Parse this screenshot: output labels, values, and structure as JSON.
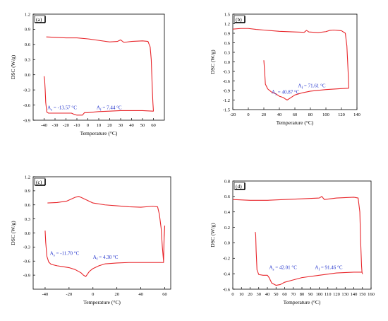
{
  "chart_data": [
    {
      "type": "line",
      "panel": "(a)",
      "xlabel": "Temperature (°C)",
      "ylabel": "DSC (W/g)",
      "xlim": [
        -50,
        70
      ],
      "ylim": [
        -0.9,
        1.2
      ],
      "xticks": [
        -40,
        -30,
        -20,
        -10,
        0,
        10,
        20,
        30,
        40,
        50,
        60
      ],
      "yticks": [
        -0.9,
        -0.6,
        -0.3,
        0.0,
        0.3,
        0.6,
        0.9,
        1.2
      ],
      "xtick_labels": [
        "-40",
        "-30",
        "-20",
        "-10",
        "0",
        "10",
        "20",
        "30",
        "40",
        "50",
        "60"
      ],
      "ytick_labels": [
        "-0.9",
        "-0.6",
        "-0.3",
        "0.0",
        "0.3",
        "0.6",
        "0.9",
        "1.2"
      ],
      "series": [
        {
          "color": "#e8262b",
          "x": [
            -38,
            -30,
            -20,
            -10,
            0,
            10,
            20,
            27,
            30,
            33,
            40,
            50,
            55,
            57,
            58,
            58.5,
            59,
            59.5,
            60,
            59.5,
            50,
            40,
            30,
            20,
            10,
            5,
            0,
            -3,
            -5,
            -10,
            -13,
            -15,
            -20,
            -30,
            -36,
            -37.5,
            -38.5,
            -39,
            -39.5,
            -40
          ],
          "y": [
            0.75,
            0.74,
            0.73,
            0.73,
            0.71,
            0.68,
            0.65,
            0.66,
            0.69,
            0.64,
            0.66,
            0.67,
            0.66,
            0.55,
            0.3,
            0.0,
            -0.3,
            -0.55,
            -0.72,
            -0.72,
            -0.71,
            -0.71,
            -0.71,
            -0.72,
            -0.73,
            -0.74,
            -0.75,
            -0.75,
            -0.8,
            -0.8,
            -0.78,
            -0.76,
            -0.76,
            -0.76,
            -0.76,
            -0.74,
            -0.55,
            -0.3,
            -0.1,
            -0.03
          ]
        }
      ],
      "annotations": [
        {
          "main": "A",
          "sub": "s",
          "text": " = -13.57 °C",
          "x": -37,
          "y": -0.68
        },
        {
          "main": "A",
          "sub": "f",
          "text": " = 7.44 °C",
          "x": 8,
          "y": -0.68
        }
      ]
    },
    {
      "type": "line",
      "panel": "(b)",
      "xlabel": "Temperature (°C)",
      "ylabel": "DSC (W/g)",
      "xlim": [
        -20,
        140
      ],
      "ylim": [
        -1.5,
        1.5
      ],
      "xticks": [
        -20,
        0,
        20,
        40,
        60,
        80,
        100,
        120,
        140
      ],
      "yticks": [
        -1.5,
        -1.2,
        -0.9,
        -0.6,
        -0.3,
        0.0,
        0.3,
        0.6,
        0.9,
        1.2,
        1.5
      ],
      "xtick_labels": [
        "-20",
        "0",
        "20",
        "40",
        "60",
        "80",
        "100",
        "120",
        "140"
      ],
      "ytick_labels": [
        "-1.5",
        "-1.2",
        "-0.9",
        "-0.6",
        "-0.3",
        "0.0",
        "0.3",
        "0.6",
        "0.9",
        "1.2",
        "1.5"
      ],
      "series": [
        {
          "color": "#e8262b",
          "x": [
            -20,
            -10,
            0,
            10,
            20,
            40,
            60,
            72,
            75,
            78,
            90,
            100,
            105,
            110,
            115,
            120,
            125,
            127,
            128,
            129,
            129.5,
            129,
            120,
            100,
            80,
            70,
            60,
            55,
            50,
            48,
            45,
            40,
            35,
            30,
            25,
            22,
            21,
            20
          ],
          "y": [
            1.03,
            1.05,
            1.05,
            1.02,
            1.0,
            0.96,
            0.94,
            0.93,
            0.99,
            0.94,
            0.92,
            0.95,
            0.99,
            1.0,
            0.99,
            0.98,
            0.9,
            0.5,
            0.0,
            -0.5,
            -0.82,
            -0.83,
            -0.84,
            -0.87,
            -0.92,
            -0.97,
            -1.04,
            -1.12,
            -1.2,
            -1.17,
            -1.12,
            -1.08,
            -1.0,
            -0.95,
            -0.85,
            -0.7,
            -0.3,
            0.05
          ]
        }
      ],
      "annotations": [
        {
          "main": "A",
          "sub": "s",
          "text": " = 40.87 °C",
          "x": 30,
          "y": -1.0
        },
        {
          "main": "A",
          "sub": "f",
          "text": " = 71.61 °C",
          "x": 64,
          "y": -0.8
        }
      ]
    },
    {
      "type": "line",
      "panel": "(c)",
      "xlabel": "Temperature (°C)",
      "ylabel": "DSC (W/g)",
      "xlim": [
        -50,
        65
      ],
      "ylim": [
        -1.2,
        1.2
      ],
      "xticks": [
        -40,
        -20,
        0,
        20,
        40,
        60
      ],
      "yticks": [
        -0.9,
        -0.6,
        -0.3,
        0.0,
        0.3,
        0.6,
        0.9,
        1.2
      ],
      "xtick_labels": [
        "-40",
        "-20",
        "0",
        "20",
        "40",
        "60"
      ],
      "ytick_labels": [
        "-0.9",
        "-0.6",
        "-0.3",
        "0.0",
        "0.3",
        "0.6",
        "0.9",
        "1.2"
      ],
      "series": [
        {
          "color": "#e8262b",
          "x": [
            -38,
            -30,
            -22,
            -15,
            -12,
            -10,
            -5,
            0,
            10,
            20,
            30,
            40,
            50,
            54,
            55.5,
            57,
            58,
            59,
            59.5,
            60,
            59.5,
            59,
            55,
            50,
            40,
            30,
            20,
            10,
            5,
            0,
            -3,
            -6,
            -8,
            -10,
            -15,
            -20,
            -25,
            -30,
            -35,
            -37,
            -38.5,
            -39.5,
            -40
          ],
          "y": [
            0.64,
            0.65,
            0.68,
            0.76,
            0.78,
            0.76,
            0.7,
            0.64,
            0.6,
            0.58,
            0.56,
            0.55,
            0.57,
            0.56,
            0.4,
            0.1,
            -0.3,
            -0.6,
            -0.1,
            0.15,
            -0.05,
            -0.63,
            -0.63,
            -0.63,
            -0.63,
            -0.63,
            -0.64,
            -0.66,
            -0.7,
            -0.76,
            -0.82,
            -0.93,
            -0.9,
            -0.85,
            -0.78,
            -0.74,
            -0.72,
            -0.7,
            -0.67,
            -0.62,
            -0.5,
            -0.2,
            0.05
          ]
        }
      ],
      "annotations": [
        {
          "main": "A",
          "sub": "s",
          "text": " = -11.70 °C",
          "x": -36,
          "y": -0.47
        },
        {
          "main": "A",
          "sub": "f",
          "text": " = 4.30 °C",
          "x": 0,
          "y": -0.55
        }
      ]
    },
    {
      "type": "line",
      "panel": "(d)",
      "xlabel": "Temperature (°C)",
      "ylabel": "DSC (W/g)",
      "xlim": [
        0,
        160
      ],
      "ylim": [
        -0.6,
        0.8
      ],
      "xticks": [
        0,
        10,
        20,
        30,
        40,
        50,
        60,
        70,
        80,
        90,
        100,
        110,
        120,
        130,
        140,
        150,
        160
      ],
      "yticks": [
        -0.6,
        -0.4,
        -0.2,
        0.0,
        0.2,
        0.4,
        0.6,
        0.8
      ],
      "xtick_labels": [
        "0",
        "10",
        "20",
        "30",
        "40",
        "50",
        "60",
        "70",
        "80",
        "90",
        "100",
        "110",
        "120",
        "130",
        "140",
        "150",
        "160"
      ],
      "ytick_labels": [
        "-0.6",
        "-0.4",
        "-0.2",
        "0.0",
        "0.2",
        "0.4",
        "0.6",
        "0.8"
      ],
      "series": [
        {
          "color": "#e8262b",
          "x": [
            0,
            20,
            40,
            60,
            80,
            100,
            103,
            106,
            120,
            140,
            145,
            147,
            148,
            149,
            149.5,
            150,
            149.5,
            149,
            140,
            120,
            100,
            80,
            70,
            60,
            55,
            50,
            45,
            42,
            40,
            35,
            30,
            28,
            27,
            26.5,
            26
          ],
          "y": [
            0.56,
            0.55,
            0.55,
            0.56,
            0.57,
            0.58,
            0.6,
            0.56,
            0.58,
            0.59,
            0.58,
            0.4,
            0.0,
            -0.3,
            -0.38,
            -0.4,
            -0.38,
            -0.38,
            -0.38,
            -0.39,
            -0.42,
            -0.45,
            -0.48,
            -0.51,
            -0.54,
            -0.55,
            -0.52,
            -0.45,
            -0.42,
            -0.42,
            -0.41,
            -0.35,
            -0.1,
            0.1,
            0.14
          ]
        }
      ],
      "annotations": [
        {
          "main": "A",
          "sub": "s",
          "text": " = 42.01 °C",
          "x": 42,
          "y": -0.34
        },
        {
          "main": "A",
          "sub": "f",
          "text": " = 91.46 °C",
          "x": 95,
          "y": -0.34
        }
      ]
    }
  ]
}
